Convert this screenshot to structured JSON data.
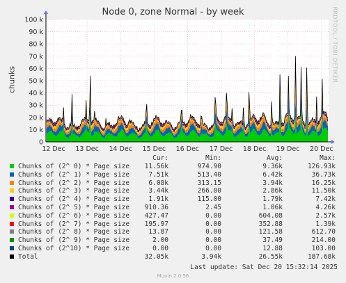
{
  "chart_data": {
    "type": "area",
    "title": "Node 0, zone Normal - by week",
    "ylabel": "chunks",
    "ylim": [
      0,
      100000
    ],
    "y_ticks": [
      "0",
      "10 k",
      "20 k",
      "30 k",
      "40 k",
      "50 k",
      "60 k",
      "70 k",
      "80 k",
      "90 k",
      "100 k"
    ],
    "x_ticks": [
      "12 Dec",
      "13 Dec",
      "14 Dec",
      "15 Dec",
      "16 Dec",
      "17 Dec",
      "18 Dec",
      "19 Dec",
      "20 Dec"
    ],
    "grid": true,
    "series": [
      {
        "name": "Chunks of (2^ 0) * Page size",
        "color": "#00cc00",
        "cur": "11.56k",
        "min": "974.90",
        "avg": "9.36k",
        "max": "126.93k"
      },
      {
        "name": "Chunks of (2^ 1) * Page size",
        "color": "#0066b3",
        "cur": "7.51k",
        "min": "513.40",
        "avg": "6.42k",
        "max": "36.73k"
      },
      {
        "name": "Chunks of (2^ 2) * Page size",
        "color": "#ff8000",
        "cur": "6.08k",
        "min": "313.15",
        "avg": "3.94k",
        "max": "16.25k"
      },
      {
        "name": "Chunks of (2^ 3) * Page size",
        "color": "#ffcc00",
        "cur": "3.44k",
        "min": "266.00",
        "avg": "2.86k",
        "max": "11.50k"
      },
      {
        "name": "Chunks of (2^ 4) * Page size",
        "color": "#330099",
        "cur": "1.91k",
        "min": "115.00",
        "avg": "1.79k",
        "max": "7.42k"
      },
      {
        "name": "Chunks of (2^ 5) * Page size",
        "color": "#990099",
        "cur": "910.36",
        "min": "2.45",
        "avg": "1.06k",
        "max": "4.26k"
      },
      {
        "name": "Chunks of (2^ 6) * Page size",
        "color": "#ccff00",
        "cur": "427.47",
        "min": "0.00",
        "avg": "604.08",
        "max": "2.57k"
      },
      {
        "name": "Chunks of (2^ 7) * Page size",
        "color": "#ff0000",
        "cur": "195.97",
        "min": "0.00",
        "avg": "352.88",
        "max": "1.39k"
      },
      {
        "name": "Chunks of (2^ 8) * Page size",
        "color": "#808080",
        "cur": "13.87",
        "min": "0.00",
        "avg": "121.58",
        "max": "612.70"
      },
      {
        "name": "Chunks of (2^ 9) * Page size",
        "color": "#008f00",
        "cur": "2.00",
        "min": "0.00",
        "avg": "37.49",
        "max": "214.00"
      },
      {
        "name": "Chunks of (2^10) * Page size",
        "color": "#00487d",
        "cur": "0.00",
        "min": "0.00",
        "avg": "12.88",
        "max": "103.00"
      },
      {
        "name": "Total",
        "color": "#000000",
        "cur": "32.05k",
        "min": "3.94k",
        "avg": "26.55k",
        "max": "187.68k"
      }
    ],
    "headers": {
      "cur": "Cur:",
      "min": "Min:",
      "avg": "Avg:",
      "max": "Max:"
    }
  },
  "side_label": "RRDTOOL / TOBI OETIKER",
  "last_update": "Last update: Sat Dec 20 15:32:14 2025",
  "footer": "Munin 2.0.56"
}
